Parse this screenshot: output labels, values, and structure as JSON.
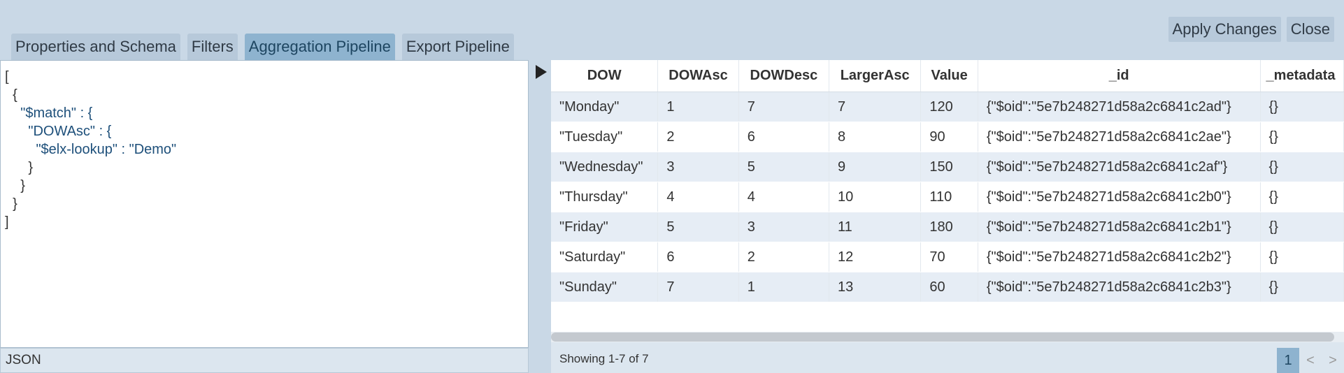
{
  "tabs": [
    {
      "label": "Properties and Schema"
    },
    {
      "label": "Filters"
    },
    {
      "label": "Aggregation Pipeline",
      "active": true
    },
    {
      "label": "Export Pipeline"
    }
  ],
  "actions": {
    "apply_label": "Apply Changes",
    "close_label": "Close"
  },
  "editor": {
    "code_lines": [
      "[",
      "  {",
      "    \"$match\" : {",
      "      \"DOWAsc\" : {",
      "        \"$elx-lookup\" : \"Demo\"",
      "      }",
      "    }",
      "  }",
      "]"
    ],
    "mode_label": "JSON",
    "run_icon": "play-icon"
  },
  "grid": {
    "columns": [
      "DOW",
      "DOWAsc",
      "DOWDesc",
      "LargerAsc",
      "Value",
      "_id",
      "_metadata"
    ],
    "rows": [
      [
        "\"Monday\"",
        "1",
        "7",
        "7",
        "120",
        "{\"$oid\":\"5e7b248271d58a2c6841c2ad\"}",
        "{}"
      ],
      [
        "\"Tuesday\"",
        "2",
        "6",
        "8",
        "90",
        "{\"$oid\":\"5e7b248271d58a2c6841c2ae\"}",
        "{}"
      ],
      [
        "\"Wednesday\"",
        "3",
        "5",
        "9",
        "150",
        "{\"$oid\":\"5e7b248271d58a2c6841c2af\"}",
        "{}"
      ],
      [
        "\"Thursday\"",
        "4",
        "4",
        "10",
        "110",
        "{\"$oid\":\"5e7b248271d58a2c6841c2b0\"}",
        "{}"
      ],
      [
        "\"Friday\"",
        "5",
        "3",
        "11",
        "180",
        "{\"$oid\":\"5e7b248271d58a2c6841c2b1\"}",
        "{}"
      ],
      [
        "\"Saturday\"",
        "6",
        "2",
        "12",
        "70",
        "{\"$oid\":\"5e7b248271d58a2c6841c2b2\"}",
        "{}"
      ],
      [
        "\"Sunday\"",
        "7",
        "1",
        "13",
        "60",
        "{\"$oid\":\"5e7b248271d58a2c6841c2b3\"}",
        "{}"
      ]
    ],
    "showing_label": "Showing 1-7 of 7",
    "pager": {
      "current": "1",
      "prev": "<",
      "next": ">"
    }
  }
}
